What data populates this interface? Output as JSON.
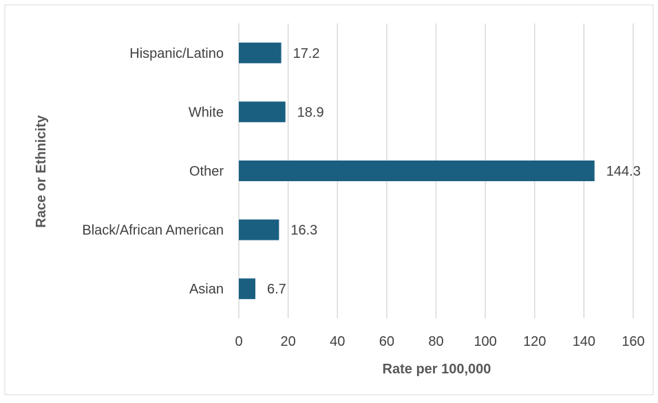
{
  "chart_data": {
    "type": "bar",
    "orientation": "horizontal",
    "categories": [
      "Hispanic/Latino",
      "White",
      "Other",
      "Black/African American",
      "Asian"
    ],
    "values": [
      17.2,
      18.9,
      144.3,
      16.3,
      6.7
    ],
    "value_labels": [
      "17.2",
      "18.9",
      "144.3",
      "16.3",
      "6.7"
    ],
    "xlabel": "Rate per 100,000",
    "ylabel": "Race or Ethnicity",
    "xlim": [
      0,
      160
    ],
    "xticks": [
      0,
      20,
      40,
      60,
      80,
      100,
      120,
      140,
      160
    ],
    "grid": "vertical",
    "legend": "none",
    "bar_color": "#1a5f80"
  }
}
